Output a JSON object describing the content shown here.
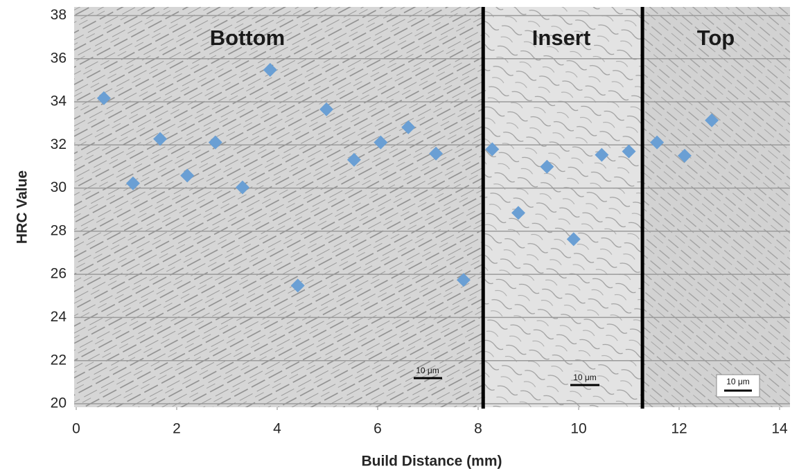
{
  "chart_data": {
    "type": "scatter",
    "x_label": "Build Distance (mm)",
    "y_label": "HRC Value",
    "xlim": [
      0,
      14.2
    ],
    "ylim": [
      20,
      38.4
    ],
    "xticks": [
      0,
      2,
      4,
      6,
      8,
      10,
      12,
      14
    ],
    "yticks": [
      20,
      22,
      24,
      26,
      28,
      30,
      32,
      34,
      36,
      38
    ],
    "grid": true,
    "marker": "diamond",
    "series": [
      {
        "color": "#6a9fd4",
        "x": [
          0.55,
          1.13,
          1.67,
          2.21,
          2.77,
          3.31,
          3.86,
          4.41,
          4.98,
          5.53,
          6.06,
          6.61,
          7.16,
          7.71,
          8.28,
          8.8,
          9.37,
          9.9,
          10.46,
          11.0,
          11.56,
          12.11,
          12.65
        ],
        "values": [
          34.17,
          30.22,
          32.28,
          30.58,
          32.12,
          30.03,
          35.48,
          25.48,
          33.65,
          31.31,
          32.12,
          32.82,
          31.6,
          25.74,
          31.8,
          28.85,
          30.99,
          27.63,
          31.54,
          31.7,
          32.12,
          31.5,
          33.14
        ]
      }
    ],
    "dividers": [
      8.1,
      11.27
    ],
    "regions": [
      "Bottom",
      "Insert",
      "Top"
    ],
    "scale_bars": [
      "10 μm",
      "10 μm",
      "10 μm"
    ]
  }
}
